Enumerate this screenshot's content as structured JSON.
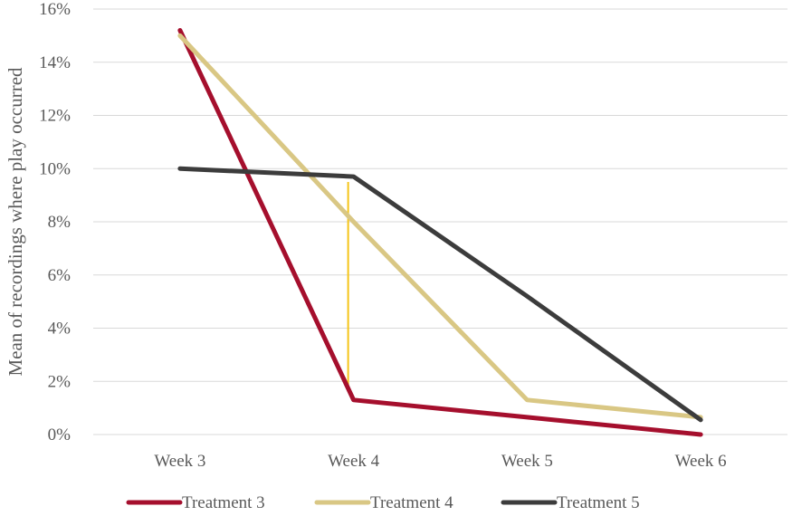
{
  "chart_data": {
    "type": "line",
    "categories": [
      "Week 3",
      "Week 4",
      "Week 5",
      "Week 6"
    ],
    "series": [
      {
        "name": "Treatment 3",
        "color": "#a50f2d",
        "values": [
          15.2,
          1.3,
          0.65,
          0.0
        ]
      },
      {
        "name": "Treatment 4",
        "color": "#d9c784",
        "values": [
          15.0,
          8.0,
          1.3,
          0.65
        ]
      },
      {
        "name": "Treatment 5",
        "color": "#3c3c3c",
        "values": [
          10.0,
          9.7,
          5.2,
          0.55
        ]
      }
    ],
    "ylabel": "Mean of recordings where play occurred",
    "xlabel": "",
    "ylim": [
      0,
      16
    ],
    "y_ticks": [
      0,
      2,
      4,
      6,
      8,
      10,
      12,
      14,
      16
    ],
    "y_tick_format": "percent",
    "grid": true,
    "legend_position": "bottom",
    "annotation": {
      "type": "vertical-error-bar",
      "category": "Week 4",
      "from": 1.6,
      "to": 9.5,
      "color": "#f5c518"
    }
  }
}
